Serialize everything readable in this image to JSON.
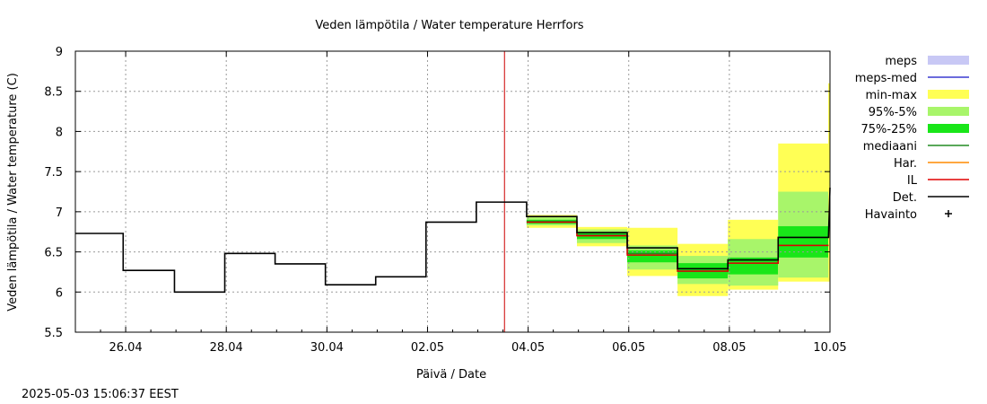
{
  "chart_data": {
    "type": "line",
    "title": "Veden lämpötila / Water temperature Herrfors",
    "xlabel": "Päivä / Date",
    "ylabel": "Veden lämpötila / Water temperature (C)",
    "timestamp": "2025-05-03 15:06:37 EEST",
    "xlim": [
      0,
      15
    ],
    "ylim": [
      5.5,
      9
    ],
    "grid": true,
    "x_ticks": [
      {
        "x": 1,
        "label": "26.04"
      },
      {
        "x": 3,
        "label": "28.04"
      },
      {
        "x": 5,
        "label": "30.04"
      },
      {
        "x": 7,
        "label": "02.05"
      },
      {
        "x": 9,
        "label": "04.05"
      },
      {
        "x": 11,
        "label": "06.05"
      },
      {
        "x": 13,
        "label": "08.05"
      },
      {
        "x": 15,
        "label": "10.05"
      }
    ],
    "y_ticks": [
      5.5,
      6,
      6.5,
      7,
      7.5,
      8,
      8.5,
      9
    ],
    "now_x": 8.53,
    "legend": [
      {
        "key": "meps",
        "label": "meps",
        "kind": "box",
        "color": "#c8c8f5"
      },
      {
        "key": "meps_med",
        "label": "meps-med",
        "kind": "line",
        "color": "#3a3ad0"
      },
      {
        "key": "min_max",
        "label": "min-max",
        "kind": "box",
        "color": "#ffff55"
      },
      {
        "key": "p95_5",
        "label": "95%-5%",
        "kind": "box",
        "color": "#a8f56a"
      },
      {
        "key": "p75_25",
        "label": "75%-25%",
        "kind": "box",
        "color": "#19e619"
      },
      {
        "key": "median",
        "label": "mediaani",
        "kind": "line",
        "color": "#228b22"
      },
      {
        "key": "har",
        "label": "Har.",
        "kind": "line",
        "color": "#ff8c00"
      },
      {
        "key": "il",
        "label": "IL",
        "kind": "line",
        "color": "#e00000"
      },
      {
        "key": "det",
        "label": "Det.",
        "kind": "line",
        "color": "#000000"
      },
      {
        "key": "havainto",
        "label": "Havainto",
        "kind": "plus",
        "color": "#000000"
      }
    ],
    "observed_steps": [
      {
        "x0": 0,
        "x1": 0.95,
        "y": 6.73
      },
      {
        "x0": 0.95,
        "x1": 1.97,
        "y": 6.27
      },
      {
        "x0": 1.97,
        "x1": 2.97,
        "y": 6.0
      },
      {
        "x0": 2.97,
        "x1": 3.97,
        "y": 6.48
      },
      {
        "x0": 3.97,
        "x1": 4.97,
        "y": 6.35
      },
      {
        "x0": 4.97,
        "x1": 5.97,
        "y": 6.09
      },
      {
        "x0": 5.97,
        "x1": 6.97,
        "y": 6.19
      },
      {
        "x0": 6.97,
        "x1": 7.97,
        "y": 6.87
      },
      {
        "x0": 7.97,
        "x1": 8.97,
        "y": 7.12
      }
    ],
    "forecast_steps": [
      {
        "x0": 8.97,
        "x1": 9.97,
        "min": 6.8,
        "max": 6.96,
        "p95": 6.93,
        "p5": 6.83,
        "p75": 6.9,
        "p25": 6.85,
        "median": 6.88,
        "il": 6.87,
        "det": 6.94
      },
      {
        "x0": 9.97,
        "x1": 10.97,
        "min": 6.57,
        "max": 6.81,
        "p95": 6.78,
        "p5": 6.61,
        "p75": 6.74,
        "p25": 6.66,
        "median": 6.71,
        "il": 6.7,
        "det": 6.74
      },
      {
        "x0": 10.97,
        "x1": 11.97,
        "min": 6.2,
        "max": 6.8,
        "p95": 6.58,
        "p5": 6.28,
        "p75": 6.52,
        "p25": 6.37,
        "median": 6.48,
        "il": 6.46,
        "det": 6.55
      },
      {
        "x0": 11.97,
        "x1": 12.97,
        "min": 5.95,
        "max": 6.6,
        "p95": 6.45,
        "p5": 6.1,
        "p75": 6.36,
        "p25": 6.17,
        "median": 6.26,
        "il": 6.26,
        "det": 6.29
      },
      {
        "x0": 12.97,
        "x1": 13.97,
        "min": 6.03,
        "max": 6.9,
        "p95": 6.66,
        "p5": 6.08,
        "p75": 6.43,
        "p25": 6.22,
        "median": 6.36,
        "il": 6.36,
        "det": 6.4
      },
      {
        "x0": 13.97,
        "x1": 14.97,
        "min": 6.13,
        "max": 7.85,
        "p95": 7.25,
        "p5": 6.18,
        "p75": 6.82,
        "p25": 6.43,
        "median": 6.58,
        "il": 6.58,
        "det": 6.68
      }
    ],
    "final_spike": {
      "x": 15,
      "min": 6.13,
      "max": 8.6,
      "det": 7.3
    }
  }
}
